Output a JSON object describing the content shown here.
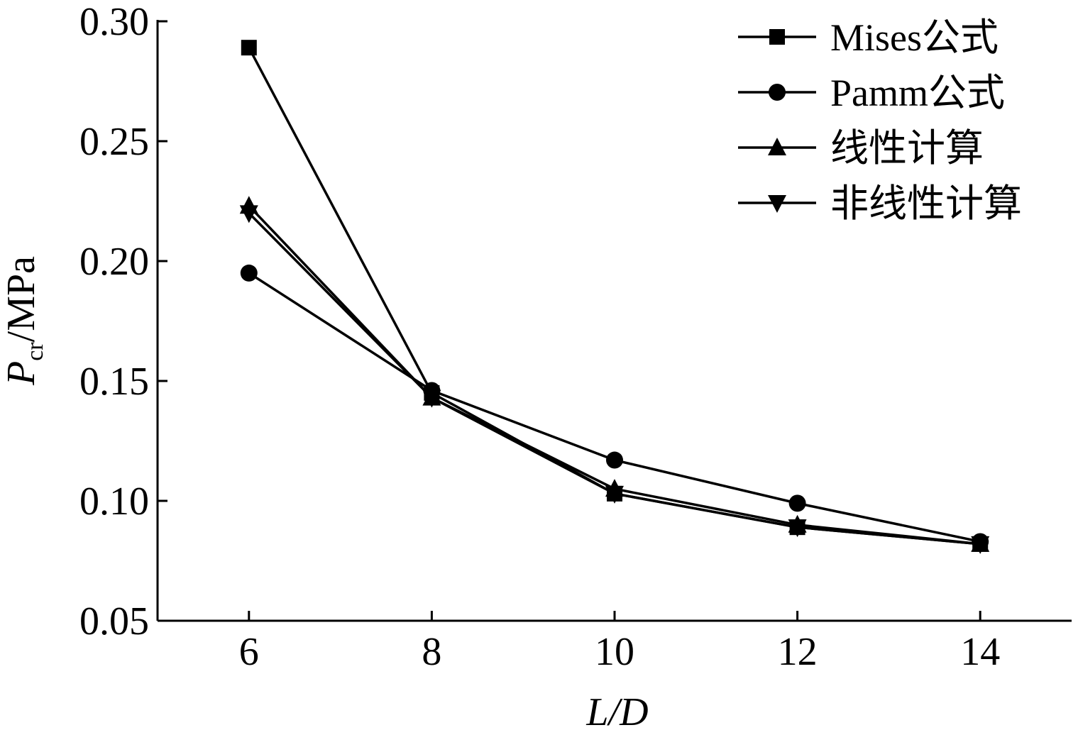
{
  "chart_data": {
    "type": "line",
    "xlabel": "L/D",
    "ylabel": "Pcr/MPa",
    "ylabel_main": "P",
    "ylabel_sub": "cr",
    "ylabel_unit": "/MPa",
    "x": [
      6,
      8,
      10,
      12,
      14
    ],
    "xlim": [
      5,
      15
    ],
    "ylim": [
      0.05,
      0.3
    ],
    "xticks": [
      "6",
      "8",
      "10",
      "12",
      "14"
    ],
    "yticks": [
      "0.05",
      "0.10",
      "0.15",
      "0.20",
      "0.25",
      "0.30"
    ],
    "grid": false,
    "legend_position": "top-right",
    "series": [
      {
        "name": "Mises公式",
        "marker": "square",
        "values": [
          0.289,
          0.145,
          0.103,
          0.089,
          0.082
        ]
      },
      {
        "name": "Pamm公式",
        "marker": "circle",
        "values": [
          0.195,
          0.146,
          0.117,
          0.099,
          0.083
        ]
      },
      {
        "name": "线性计算",
        "marker": "triangle-up",
        "values": [
          0.223,
          0.143,
          0.105,
          0.09,
          0.082
        ]
      },
      {
        "name": "非线性计算",
        "marker": "triangle-down",
        "values": [
          0.22,
          0.143,
          0.103,
          0.089,
          0.082
        ]
      }
    ],
    "colors": {
      "line": "#000000",
      "marker": "#000000",
      "background": "#ffffff"
    }
  }
}
